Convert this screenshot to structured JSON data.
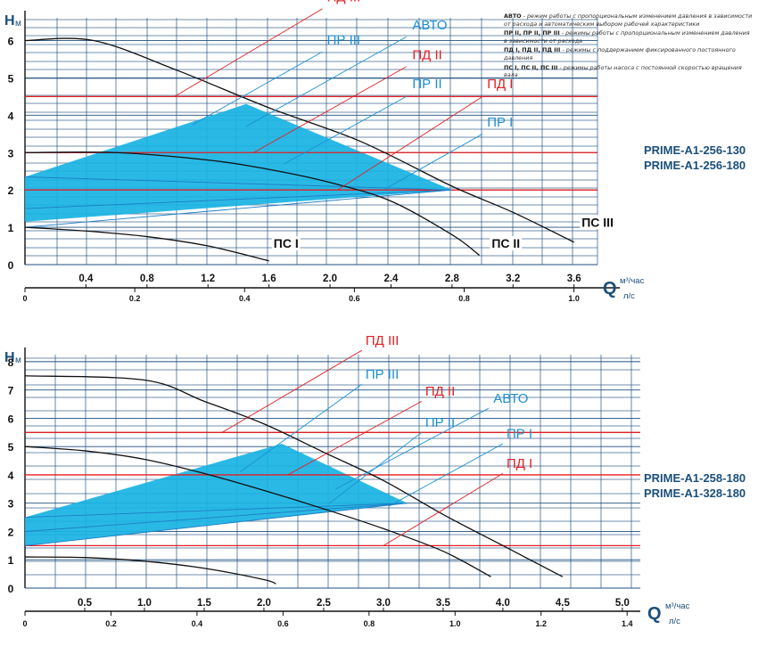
{
  "legend_notes": [
    {
      "term": "АВТО",
      "desc": "- режим работы с пропорциональным изменением давления в зависимости от расхода и автоматическим выбором рабочей характеристики"
    },
    {
      "term": "ПР II, ПР II, ПР III",
      "desc": "- режимы работы с пропорциональным изменением давления в зависимости от расхода"
    },
    {
      "term": "ПД I, ПД II, ПД III",
      "desc": "- режимы с поддержанием фиксированного постоянного давления"
    },
    {
      "term": "ПС I, ПС II, ПС III",
      "desc": "- режимы работы насоса с постоянной скоростью вращения вала"
    }
  ],
  "chart_data": [
    {
      "type": "line",
      "model_labels": [
        "PRIME-A1-256-130",
        "PRIME-A1-256-180"
      ],
      "y_label_main": "H",
      "y_label_sub": "м",
      "x_label_main": "Q",
      "x_unit_top": "м³/час",
      "x_unit_bottom": "л/с",
      "xlim": [
        0,
        3.9
      ],
      "ylim": [
        0,
        6.8
      ],
      "x_ticks": [
        0.4,
        0.8,
        1.2,
        1.6,
        2.0,
        2.4,
        2.8,
        3.2,
        3.6
      ],
      "x_tick_labels": [
        "0.4",
        "0.8",
        "1.2",
        "1.6",
        "2.0",
        "2.4",
        "2.8",
        "3.2",
        "3.6"
      ],
      "y_ticks": [
        0,
        1,
        2,
        3,
        4,
        5,
        6
      ],
      "y_tick_labels": [
        "0",
        "1",
        "2",
        "3",
        "4",
        "5",
        "6"
      ],
      "ls_ticks": [
        0,
        0.2,
        0.4,
        0.6,
        0.8,
        1.0
      ],
      "ls_tick_labels": [
        "0",
        "0.2",
        "0.4",
        "0.6",
        "0.8",
        "1.0"
      ],
      "ls_per_m3h": 0.2778,
      "series": [
        {
          "name": "ПС III",
          "kind": "speed",
          "points": [
            [
              0,
              6.0
            ],
            [
              0.45,
              6.0
            ],
            [
              1.0,
              5.2
            ],
            [
              1.6,
              4.2
            ],
            [
              2.2,
              3.3
            ],
            [
              2.8,
              2.1
            ],
            [
              3.2,
              1.4
            ],
            [
              3.6,
              0.6
            ]
          ]
        },
        {
          "name": "ПС II",
          "kind": "speed",
          "points": [
            [
              0,
              3.0
            ],
            [
              0.6,
              3.0
            ],
            [
              1.2,
              2.8
            ],
            [
              1.6,
              2.55
            ],
            [
              2.0,
              2.2
            ],
            [
              2.4,
              1.7
            ],
            [
              2.8,
              0.8
            ],
            [
              2.98,
              0.25
            ]
          ]
        },
        {
          "name": "ПС I",
          "kind": "speed",
          "points": [
            [
              0,
              1.0
            ],
            [
              0.4,
              0.9
            ],
            [
              0.8,
              0.75
            ],
            [
              1.2,
              0.5
            ],
            [
              1.6,
              0.1
            ]
          ]
        },
        {
          "name": "ПД III",
          "kind": "const",
          "y": 4.5
        },
        {
          "name": "ПД II",
          "kind": "const",
          "y": 3.0
        },
        {
          "name": "ПД I",
          "kind": "const",
          "y": 2.0
        },
        {
          "name": "ПР III",
          "kind": "prop",
          "points": [
            [
              0,
              2.35
            ],
            [
              2.8,
              2.0
            ]
          ]
        },
        {
          "name": "ПР II",
          "kind": "prop",
          "points": [
            [
              0,
              1.5
            ],
            [
              2.8,
              2.0
            ]
          ]
        },
        {
          "name": "ПР I",
          "kind": "prop",
          "points": [
            [
              0,
              1.0
            ],
            [
              2.8,
              2.0
            ]
          ]
        },
        {
          "name": "АВТО",
          "kind": "area",
          "points": [
            [
              0,
              2.35
            ],
            [
              1.45,
              4.3
            ],
            [
              2.8,
              2.0
            ],
            [
              0,
              1.15
            ]
          ]
        }
      ],
      "annotations": [
        {
          "text": "ПД III",
          "color": "#e31e24",
          "at": [
            1.98,
            7.05
          ],
          "leader": [
            [
              1.95,
              6.85
            ],
            [
              0.98,
              4.5
            ]
          ]
        },
        {
          "text": "ПР III",
          "color": "#1b8fd2",
          "at": [
            1.98,
            5.9
          ],
          "leader": [
            [
              1.95,
              5.7
            ],
            [
              1.1,
              3.75
            ]
          ]
        },
        {
          "text": "АВТО",
          "color": "#1b8fd2",
          "at": [
            2.54,
            6.3
          ],
          "leader": [
            [
              2.5,
              6.1
            ],
            [
              1.45,
              3.7
            ]
          ]
        },
        {
          "text": "ПД II",
          "color": "#e31e24",
          "at": [
            2.54,
            5.5
          ],
          "leader": [
            [
              2.5,
              5.3
            ],
            [
              1.5,
              3.0
            ]
          ]
        },
        {
          "text": "ПР II",
          "color": "#1b8fd2",
          "at": [
            2.54,
            4.72
          ],
          "leader": [
            [
              2.5,
              4.5
            ],
            [
              1.7,
              2.7
            ]
          ]
        },
        {
          "text": "ПД I",
          "color": "#e31e24",
          "at": [
            3.03,
            4.72
          ],
          "leader": [
            [
              3.0,
              4.5
            ],
            [
              2.05,
              2.0
            ]
          ]
        },
        {
          "text": "ПР I",
          "color": "#1b8fd2",
          "at": [
            3.03,
            3.7
          ],
          "leader": [
            [
              3.0,
              3.5
            ],
            [
              2.35,
              2.0
            ]
          ]
        },
        {
          "text": "ПС III",
          "color": "#111",
          "at": [
            3.65,
            1.02
          ],
          "bold": true
        },
        {
          "text": "ПС II",
          "color": "#111",
          "at": [
            3.06,
            0.45
          ],
          "bold": true
        },
        {
          "text": "ПС I",
          "color": "#111",
          "at": [
            1.63,
            0.45
          ],
          "bold": true
        }
      ]
    },
    {
      "type": "line",
      "model_labels": [
        "PRIME-A1-258-180",
        "PRIME-A1-328-180"
      ],
      "y_label_main": "H",
      "y_label_sub": "м",
      "x_label_main": "Q",
      "x_unit_top": "м³/час",
      "x_unit_bottom": "л/с",
      "xlim": [
        0,
        5.15
      ],
      "ylim": [
        0,
        8.5
      ],
      "x_ticks": [
        0.5,
        1.0,
        1.5,
        2.0,
        2.5,
        3.0,
        3.5,
        4.0,
        4.5,
        5.0
      ],
      "x_tick_labels": [
        "0.5",
        "1.0",
        "1.5",
        "2.0",
        "2.5",
        "3.0",
        "3.5",
        "4.0",
        "4.5",
        "5.0"
      ],
      "y_ticks": [
        0,
        1,
        2,
        3,
        4,
        5,
        6,
        7,
        8
      ],
      "y_tick_labels": [
        "0",
        "1",
        "2",
        "3",
        "4",
        "5",
        "6",
        "7",
        "8"
      ],
      "ls_ticks": [
        0,
        0.2,
        0.4,
        0.6,
        0.8,
        1.0,
        1.2,
        1.4
      ],
      "ls_tick_labels": [
        "0",
        "0.2",
        "0.4",
        "0.6",
        "0.8",
        "1.0",
        "1.2",
        "1.4"
      ],
      "ls_per_m3h": 0.2778,
      "series": [
        {
          "name": "ПС III",
          "kind": "speed",
          "points": [
            [
              0,
              7.5
            ],
            [
              1.0,
              7.35
            ],
            [
              1.5,
              6.6
            ],
            [
              2.0,
              5.8
            ],
            [
              2.5,
              4.8
            ],
            [
              3.0,
              3.8
            ],
            [
              3.5,
              2.6
            ],
            [
              4.0,
              1.5
            ],
            [
              4.5,
              0.4
            ]
          ]
        },
        {
          "name": "ПС II",
          "kind": "speed",
          "points": [
            [
              0,
              5.0
            ],
            [
              0.5,
              4.85
            ],
            [
              1.0,
              4.55
            ],
            [
              1.5,
              4.05
            ],
            [
              2.0,
              3.45
            ],
            [
              2.5,
              2.8
            ],
            [
              3.0,
              2.1
            ],
            [
              3.5,
              1.3
            ],
            [
              3.9,
              0.4
            ]
          ]
        },
        {
          "name": "ПС I",
          "kind": "speed",
          "points": [
            [
              0,
              1.1
            ],
            [
              0.5,
              1.08
            ],
            [
              1.0,
              0.95
            ],
            [
              1.5,
              0.7
            ],
            [
              2.0,
              0.3
            ],
            [
              2.1,
              0.15
            ]
          ]
        },
        {
          "name": "ПД III",
          "kind": "const",
          "y": 5.5
        },
        {
          "name": "ПД II",
          "kind": "const",
          "y": 4.0
        },
        {
          "name": "ПД I",
          "kind": "const",
          "y": 1.5
        },
        {
          "name": "ПР III",
          "kind": "prop",
          "points": [
            [
              0,
              2.5
            ],
            [
              3.2,
              3.0
            ]
          ]
        },
        {
          "name": "ПР II",
          "kind": "prop",
          "points": [
            [
              0,
              2.0
            ],
            [
              3.2,
              3.0
            ]
          ]
        },
        {
          "name": "ПР I",
          "kind": "prop",
          "points": [
            [
              0,
              1.5
            ],
            [
              3.2,
              3.0
            ]
          ]
        },
        {
          "name": "АВТО",
          "kind": "area",
          "points": [
            [
              0,
              2.5
            ],
            [
              2.15,
              5.1
            ],
            [
              3.2,
              3.0
            ],
            [
              0,
              1.5
            ]
          ]
        }
      ],
      "annotations": [
        {
          "text": "ПД III",
          "color": "#e31e24",
          "at": [
            2.85,
            8.6
          ],
          "leader": [
            [
              2.82,
              8.4
            ],
            [
              1.65,
              5.5
            ]
          ]
        },
        {
          "text": "ПР III",
          "color": "#1b8fd2",
          "at": [
            2.85,
            7.4
          ],
          "leader": [
            [
              2.82,
              7.2
            ],
            [
              1.8,
              4.1
            ]
          ]
        },
        {
          "text": "ПД II",
          "color": "#e31e24",
          "at": [
            3.35,
            6.8
          ],
          "leader": [
            [
              3.32,
              6.6
            ],
            [
              2.2,
              4.0
            ]
          ]
        },
        {
          "text": "АВТО",
          "color": "#1b8fd2",
          "at": [
            3.92,
            6.55
          ],
          "leader": [
            [
              3.88,
              6.35
            ],
            [
              2.6,
              3.5
            ]
          ]
        },
        {
          "text": "ПР II",
          "color": "#1b8fd2",
          "at": [
            3.35,
            5.7
          ],
          "leader": [
            [
              3.32,
              5.5
            ],
            [
              2.55,
              3.0
            ]
          ]
        },
        {
          "text": "ПР I",
          "color": "#1b8fd2",
          "at": [
            4.03,
            5.3
          ],
          "leader": [
            [
              4.0,
              5.1
            ],
            [
              3.05,
              2.9
            ]
          ]
        },
        {
          "text": "ПД I",
          "color": "#e31e24",
          "at": [
            4.03,
            4.25
          ],
          "leader": [
            [
              4.0,
              4.05
            ],
            [
              3.0,
              1.5
            ]
          ]
        }
      ]
    }
  ]
}
